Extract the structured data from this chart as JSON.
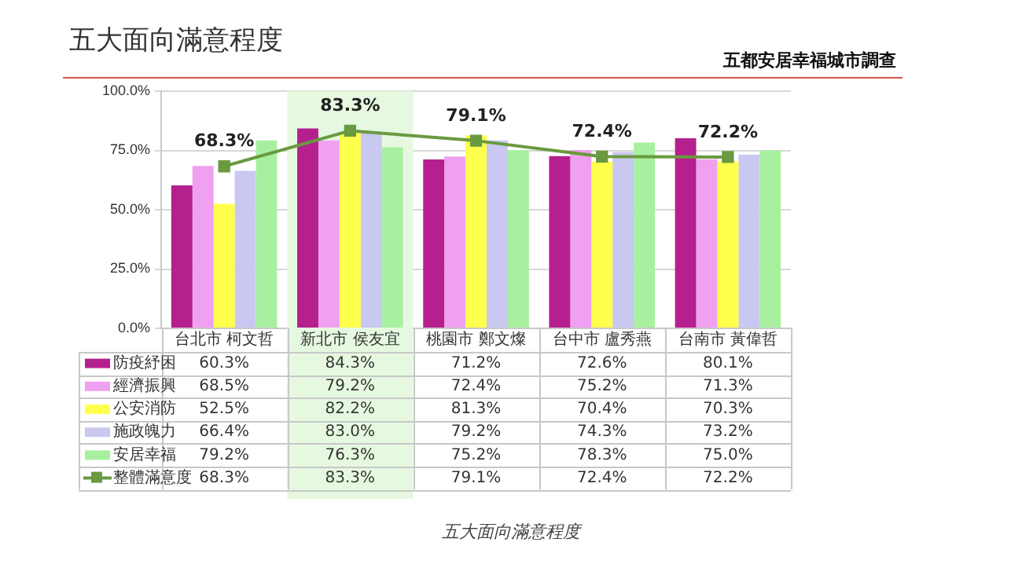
{
  "chart_data": {
    "type": "bar",
    "title": "五大面向滿意程度",
    "subtitle": "五都安居幸福城市調查",
    "annotations": [
      "五大面向滿意程度"
    ],
    "categories": [
      "台北市 柯文哲",
      "新北市 侯友宜",
      "桃園市 鄭文燦",
      "台中市 盧秀燕",
      "台南市 黃偉哲"
    ],
    "series": [
      {
        "name": "防疫紓困",
        "color": "#b5208e",
        "values": [
          60.3,
          84.3,
          71.2,
          72.6,
          80.1
        ],
        "value_labels": [
          "60.3%",
          "84.3%",
          "71.2%",
          "72.6%",
          "80.1%"
        ]
      },
      {
        "name": "經濟振興",
        "color": "#f0a0f0",
        "values": [
          68.5,
          79.2,
          72.4,
          75.2,
          71.3
        ],
        "value_labels": [
          "68.5%",
          "79.2%",
          "72.4%",
          "75.2%",
          "71.3%"
        ]
      },
      {
        "name": "公安消防",
        "color": "#ffff4d",
        "values": [
          52.5,
          82.2,
          81.3,
          70.4,
          70.3
        ],
        "value_labels": [
          "52.5%",
          "82.2%",
          "81.3%",
          "70.4%",
          "70.3%"
        ]
      },
      {
        "name": "施政魄力",
        "color": "#c8c8f0",
        "values": [
          66.4,
          83.0,
          79.2,
          74.3,
          73.2
        ],
        "value_labels": [
          "66.4%",
          "83.0%",
          "79.2%",
          "74.3%",
          "73.2%"
        ]
      },
      {
        "name": "安居幸福",
        "color": "#a8f0a0",
        "values": [
          79.2,
          76.3,
          75.2,
          78.3,
          75.0
        ],
        "value_labels": [
          "79.2%",
          "76.3%",
          "75.2%",
          "78.3%",
          "75.0%"
        ]
      },
      {
        "name": "整體滿意度",
        "type": "line",
        "color": "#6a9a40",
        "marker": "square",
        "values": [
          68.3,
          83.3,
          79.1,
          72.4,
          72.2
        ],
        "value_labels": [
          "68.3%",
          "83.3%",
          "79.1%",
          "72.4%",
          "72.2%"
        ]
      }
    ],
    "bands": [
      {
        "axis": "x",
        "from": "新北市 侯友宜",
        "to": "新北市 侯友宜",
        "color": "#e6f9e0"
      }
    ],
    "ylim": [
      0,
      100
    ],
    "yticks": [
      {
        "value": 0,
        "label": "0.0%"
      },
      {
        "value": 25,
        "label": "25.0%"
      },
      {
        "value": 50,
        "label": "50.0%"
      },
      {
        "value": 75,
        "label": "75.0%"
      },
      {
        "value": 100,
        "label": "100.0%"
      }
    ],
    "grid": "y",
    "legend": "bottom"
  }
}
